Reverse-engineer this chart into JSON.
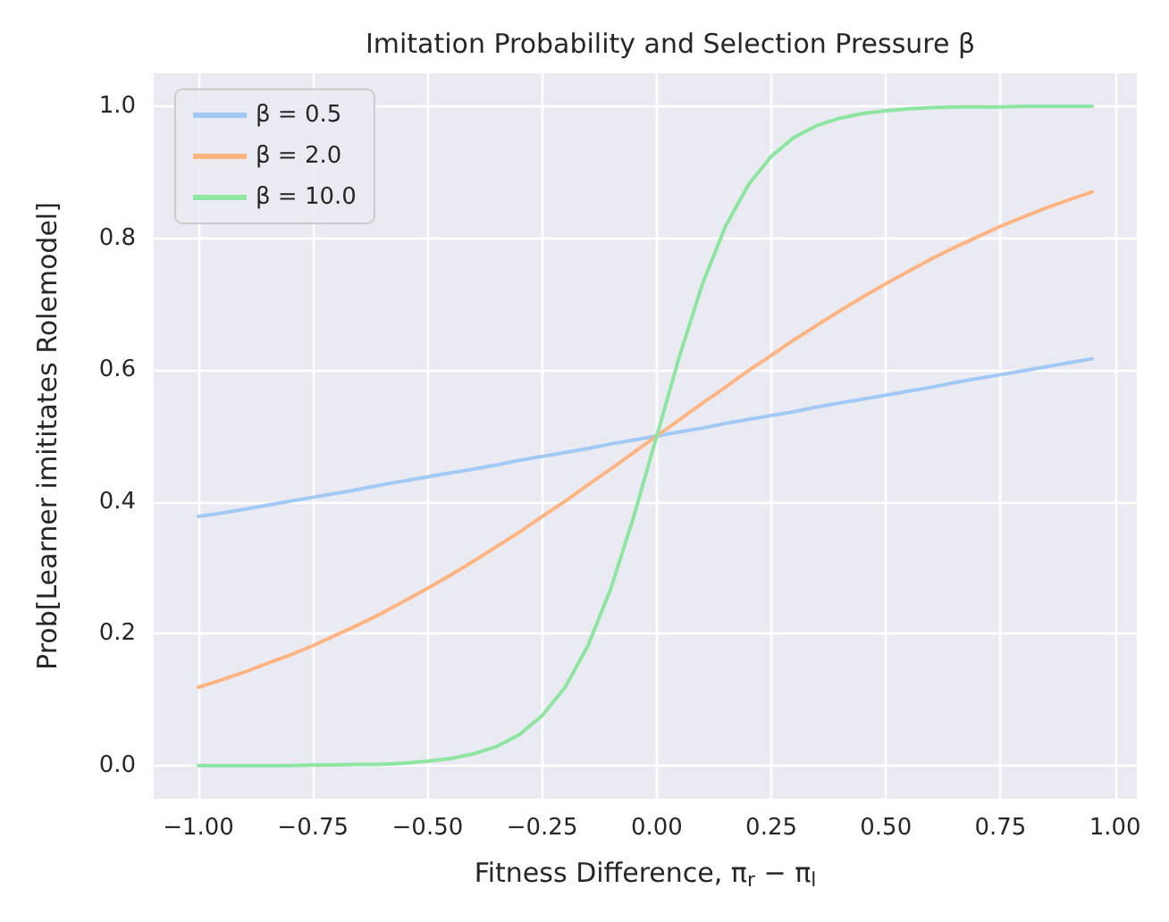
{
  "chart_data": {
    "type": "line",
    "title": "Imitation Probability and Selection Pressure β",
    "xlabel": "Fitness Difference, π$_{r}$ − π$_{l}$",
    "ylabel": "Prob[Learner imititates Rolemodel]",
    "x": [
      -1.0,
      -0.95,
      -0.9,
      -0.85,
      -0.8,
      -0.75,
      -0.7,
      -0.65,
      -0.6,
      -0.55,
      -0.5,
      -0.45,
      -0.4,
      -0.35,
      -0.3,
      -0.25,
      -0.2,
      -0.15,
      -0.1,
      -0.05,
      0.0,
      0.05,
      0.1,
      0.15,
      0.2,
      0.25,
      0.3,
      0.35,
      0.4,
      0.45,
      0.5,
      0.55,
      0.6,
      0.65,
      0.7,
      0.75,
      0.8,
      0.85,
      0.9,
      0.95
    ],
    "series": [
      {
        "name": "β = 0.5",
        "color": "#a1c9f4",
        "values": [
          0.378,
          0.383,
          0.389,
          0.395,
          0.401,
          0.407,
          0.413,
          0.419,
          0.426,
          0.432,
          0.438,
          0.444,
          0.45,
          0.456,
          0.463,
          0.469,
          0.475,
          0.481,
          0.488,
          0.494,
          0.5,
          0.506,
          0.512,
          0.519,
          0.525,
          0.531,
          0.537,
          0.544,
          0.55,
          0.556,
          0.562,
          0.568,
          0.574,
          0.581,
          0.587,
          0.593,
          0.599,
          0.605,
          0.611,
          0.617
        ]
      },
      {
        "name": "β = 2.0",
        "color": "#ffb482",
        "values": [
          0.119,
          0.13,
          0.142,
          0.155,
          0.168,
          0.182,
          0.198,
          0.214,
          0.231,
          0.25,
          0.269,
          0.289,
          0.31,
          0.332,
          0.354,
          0.378,
          0.401,
          0.426,
          0.45,
          0.475,
          0.5,
          0.525,
          0.55,
          0.574,
          0.599,
          0.622,
          0.646,
          0.668,
          0.69,
          0.711,
          0.731,
          0.75,
          0.769,
          0.786,
          0.802,
          0.818,
          0.832,
          0.846,
          0.858,
          0.87
        ]
      },
      {
        "name": "β = 10.0",
        "color": "#8de5a1",
        "values": [
          0.0,
          0.0,
          0.0,
          0.0,
          0.0,
          0.001,
          0.001,
          0.002,
          0.002,
          0.004,
          0.007,
          0.011,
          0.018,
          0.029,
          0.047,
          0.076,
          0.119,
          0.182,
          0.269,
          0.378,
          0.5,
          0.622,
          0.731,
          0.818,
          0.881,
          0.924,
          0.953,
          0.971,
          0.982,
          0.989,
          0.993,
          0.996,
          0.998,
          0.999,
          0.999,
          0.999,
          1.0,
          1.0,
          1.0,
          1.0
        ]
      }
    ],
    "xlim": [
      -1.0975,
      1.0475
    ],
    "ylim": [
      -0.05,
      1.05
    ],
    "xticks": [
      {
        "value": -1,
        "label": "−1.00"
      },
      {
        "value": -0.75,
        "label": "−0.75"
      },
      {
        "value": -0.5,
        "label": "−0.50"
      },
      {
        "value": -0.25,
        "label": "−0.25"
      },
      {
        "value": 0,
        "label": "0.00"
      },
      {
        "value": 0.25,
        "label": "0.25"
      },
      {
        "value": 0.5,
        "label": "0.50"
      },
      {
        "value": 0.75,
        "label": "0.75"
      },
      {
        "value": 1,
        "label": "1.00"
      }
    ],
    "yticks": [
      {
        "value": 0,
        "label": "0.0"
      },
      {
        "value": 0.2,
        "label": "0.2"
      },
      {
        "value": 0.4,
        "label": "0.4"
      },
      {
        "value": 0.6,
        "label": "0.6"
      },
      {
        "value": 0.8,
        "label": "0.8"
      },
      {
        "value": 1,
        "label": "1.0"
      }
    ],
    "grid": true,
    "legend": "top left",
    "marker": "none",
    "line_style": "solid"
  }
}
